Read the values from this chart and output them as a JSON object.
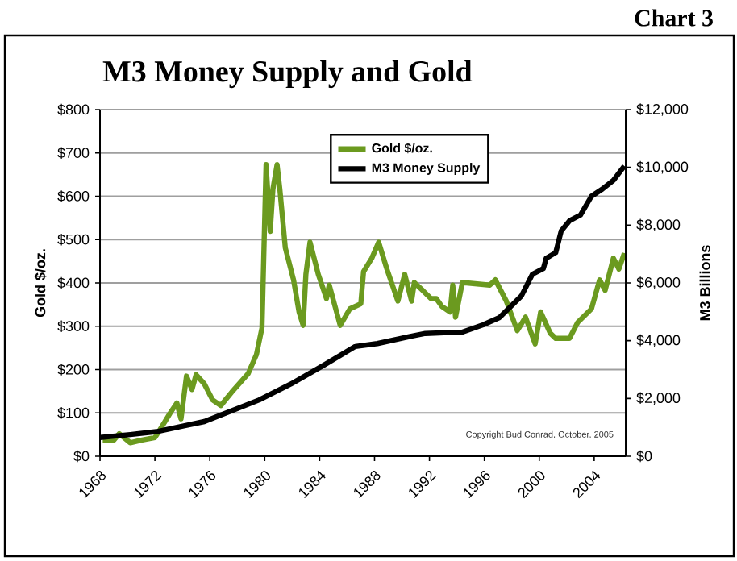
{
  "chart_data": {
    "type": "line",
    "title": "M3 Money Supply and Gold",
    "ylabel": "Gold $/oz.",
    "y2label": "M3 Billions",
    "annotations": [
      "Chart 3",
      "Copyright Bud Conrad, October, 2005"
    ],
    "xlim": [
      1968,
      2006.3
    ],
    "xticks": [
      1968,
      1972,
      1976,
      1980,
      1984,
      1988,
      1992,
      1996,
      2000,
      2004
    ],
    "ylim": [
      0,
      800
    ],
    "yticks": [
      {
        "value": 0,
        "label": "$0"
      },
      {
        "value": 100,
        "label": "$100"
      },
      {
        "value": 200,
        "label": "$200"
      },
      {
        "value": 300,
        "label": "$300"
      },
      {
        "value": 400,
        "label": "$400"
      },
      {
        "value": 500,
        "label": "$500"
      },
      {
        "value": 600,
        "label": "$600"
      },
      {
        "value": 700,
        "label": "$700"
      },
      {
        "value": 800,
        "label": "$800"
      }
    ],
    "y2lim": [
      0,
      12000
    ],
    "y2ticks": [
      {
        "value": 0,
        "label": "$0"
      },
      {
        "value": 2000,
        "label": "$2,000"
      },
      {
        "value": 4000,
        "label": "$4,000"
      },
      {
        "value": 6000,
        "label": "$6,000"
      },
      {
        "value": 8000,
        "label": "$8,000"
      },
      {
        "value": 10000,
        "label": "$10,000"
      },
      {
        "value": 12000,
        "label": "$12,000"
      }
    ],
    "grid": "y",
    "legend": "top right",
    "marker": "none",
    "line_style": "solid",
    "series": [
      {
        "name": "Gold $/oz.",
        "color": "#6b9a1f",
        "x": [
          1968.2,
          1969,
          1969.4,
          1970.2,
          1971,
          1972,
          1972.5,
          1973.1,
          1973.6,
          1973.9,
          1974.3,
          1974.7,
          1975,
          1975.6,
          1976.2,
          1976.8,
          1977.6,
          1978.8,
          1979.4,
          1979.8,
          1980.1,
          1980.4,
          1980.6,
          1980.9,
          1981.1,
          1981.5,
          1982.1,
          1982.5,
          1982.8,
          1983,
          1983.3,
          1983.9,
          1984.5,
          1984.7,
          1985.5,
          1986.2,
          1987,
          1987.2,
          1987.8,
          1988.3,
          1988.9,
          1989.7,
          1990.2,
          1990.7,
          1990.9,
          1991.5,
          1992.1,
          1992.5,
          1992.9,
          1993.5,
          1993.7,
          1993.9,
          1994.4,
          1996.4,
          1996.8,
          1997.6,
          1998.4,
          1999,
          1999.7,
          2000.1,
          2000.8,
          2001.2,
          2002.2,
          2002.8,
          2003.8,
          2004.4,
          2004.8,
          2005.4,
          2005.8,
          2006.2
        ],
        "values": [
          37,
          37,
          52,
          31,
          37,
          43,
          68,
          99,
          123,
          86,
          185,
          154,
          188,
          167,
          130,
          117,
          148,
          191,
          235,
          296,
          673,
          519,
          617,
          673,
          617,
          481,
          407,
          333,
          302,
          420,
          494,
          420,
          364,
          395,
          302,
          340,
          352,
          426,
          457,
          494,
          432,
          358,
          420,
          358,
          401,
          383,
          364,
          364,
          346,
          333,
          395,
          321,
          401,
          395,
          407,
          358,
          290,
          321,
          259,
          333,
          284,
          272,
          272,
          309,
          340,
          407,
          383,
          457,
          432,
          469
        ]
      },
      {
        "name": "M3 Money Supply",
        "color": "#000000",
        "axis": "y2",
        "x": [
          1968,
          1970.2,
          1972.1,
          1974.1,
          1975.6,
          1977.2,
          1979.6,
          1981.9,
          1984.3,
          1986.6,
          1988.2,
          1990.6,
          1991.7,
          1994.4,
          1995.9,
          1997.1,
          1998.7,
          1999.5,
          2000.3,
          2000.5,
          2001.2,
          2001.6,
          2002.2,
          2003,
          2003.8,
          2004.6,
          2005.4,
          2006.2
        ],
        "values": [
          650,
          750,
          850,
          1050,
          1200,
          1500,
          1950,
          2500,
          3150,
          3800,
          3900,
          4150,
          4250,
          4300,
          4550,
          4800,
          5550,
          6300,
          6500,
          6850,
          7050,
          7800,
          8150,
          8350,
          9000,
          9250,
          9550,
          10050
        ]
      }
    ]
  }
}
